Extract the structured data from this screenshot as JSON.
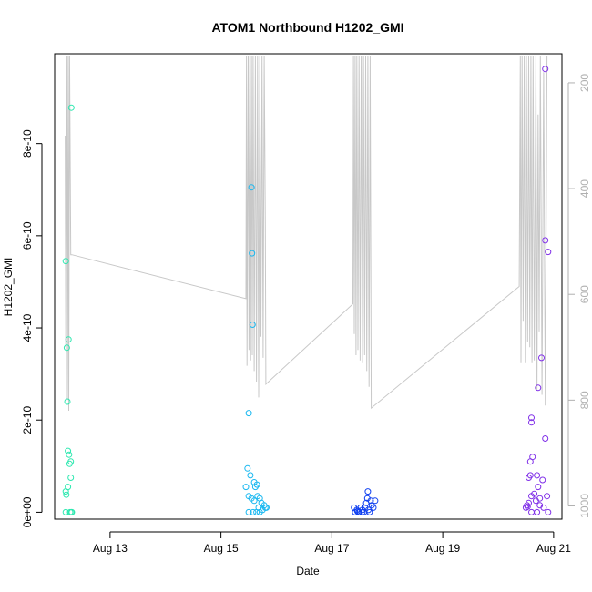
{
  "chart_data": {
    "type": "scatter",
    "title": "ATOM1 Northbound H1202_GMI",
    "xlabel": "Date",
    "ylabel": "H1202_GMI",
    "x_ticks": [
      {
        "label": "Aug 13",
        "day": 13
      },
      {
        "label": "Aug 15",
        "day": 15
      },
      {
        "label": "Aug 17",
        "day": 17
      },
      {
        "label": "Aug 19",
        "day": 19
      },
      {
        "label": "Aug 21",
        "day": 21
      }
    ],
    "y_ticks": [
      {
        "label": "0e+00",
        "value": 0
      },
      {
        "label": "2e-10",
        "value": 2e-10
      },
      {
        "label": "4e-10",
        "value": 4e-10
      },
      {
        "label": "6e-10",
        "value": 6e-10
      },
      {
        "label": "8e-10",
        "value": 8e-10
      }
    ],
    "y2_ticks": [
      {
        "label": "200",
        "value": 200
      },
      {
        "label": "400",
        "value": 400
      },
      {
        "label": "600",
        "value": 600
      },
      {
        "label": "800",
        "value": 800
      },
      {
        "label": "1000",
        "value": 1000
      }
    ],
    "xlim": [
      12.0,
      21.15
    ],
    "ylim": [
      -1.5e-11,
      9.95e-10
    ],
    "y2lim": [
      1025,
      145
    ],
    "y2_reversed": true,
    "grid": false,
    "legend": "none",
    "point_color_by_time": [
      "#2ee8b0",
      "#1ab8f0",
      "#1040f0",
      "#8030e8"
    ],
    "depth_line_color": "#c8c8c8",
    "series": [
      {
        "points": [
          [
            12.2,
            5.45e-10
          ],
          [
            12.3,
            8.78e-10
          ],
          [
            12.25,
            3.75e-10
          ],
          [
            12.22,
            3.57e-10
          ],
          [
            12.23,
            2.4e-10
          ],
          [
            12.24,
            1.33e-10
          ],
          [
            12.26,
            1.25e-10
          ],
          [
            12.29,
            1.1e-10
          ],
          [
            12.27,
            1.05e-10
          ],
          [
            12.29,
            7.5e-11
          ],
          [
            12.24,
            5.5e-11
          ],
          [
            12.2,
            4.5e-11
          ],
          [
            12.21,
            3.8e-11
          ],
          [
            12.2,
            0.0
          ],
          [
            12.28,
            0.0
          ],
          [
            12.3,
            0.0
          ],
          [
            12.31,
            0.0
          ]
        ]
      },
      {
        "points": [
          [
            15.55,
            7.05e-10
          ],
          [
            15.56,
            5.62e-10
          ],
          [
            15.57,
            4.07e-10
          ],
          [
            15.5,
            2.15e-10
          ],
          [
            15.48,
            9.5e-11
          ],
          [
            15.53,
            8e-11
          ],
          [
            15.6,
            6.5e-11
          ],
          [
            15.65,
            6e-11
          ],
          [
            15.45,
            5.5e-11
          ],
          [
            15.62,
            5.5e-11
          ],
          [
            15.5,
            3.5e-11
          ],
          [
            15.55,
            3e-11
          ],
          [
            15.66,
            3.5e-11
          ],
          [
            15.7,
            3e-11
          ],
          [
            15.6,
            2.5e-11
          ],
          [
            15.73,
            2e-11
          ],
          [
            15.78,
            1.5e-11
          ],
          [
            15.8,
            1e-11
          ],
          [
            15.68,
            1e-11
          ],
          [
            15.75,
            5e-12
          ],
          [
            15.82,
            1e-11
          ],
          [
            15.5,
            0.0
          ],
          [
            15.58,
            0.0
          ],
          [
            15.64,
            0.0
          ],
          [
            15.7,
            0.0
          ]
        ]
      },
      {
        "points": [
          [
            17.4,
            1e-11
          ],
          [
            17.45,
            5e-12
          ],
          [
            17.5,
            0.0
          ],
          [
            17.55,
            5e-12
          ],
          [
            17.6,
            1e-11
          ],
          [
            17.62,
            2e-11
          ],
          [
            17.65,
            4.5e-11
          ],
          [
            17.7,
            2.5e-11
          ],
          [
            17.72,
            1.5e-11
          ],
          [
            17.75,
            1e-11
          ],
          [
            17.42,
            0.0
          ],
          [
            17.48,
            0.0
          ],
          [
            17.52,
            1e-11
          ],
          [
            17.58,
            0.0
          ],
          [
            17.68,
            0.0
          ],
          [
            17.64,
            3e-11
          ],
          [
            17.78,
            2.5e-11
          ],
          [
            17.55,
            0.0
          ],
          [
            17.46,
            2e-12
          ],
          [
            17.66,
            5e-12
          ]
        ]
      },
      {
        "points": [
          [
            20.85,
            9.62e-10
          ],
          [
            20.85,
            5.9e-10
          ],
          [
            20.9,
            5.65e-10
          ],
          [
            20.78,
            3.35e-10
          ],
          [
            20.72,
            2.7e-10
          ],
          [
            20.6,
            2.05e-10
          ],
          [
            20.6,
            1.95e-10
          ],
          [
            20.85,
            1.6e-10
          ],
          [
            20.58,
            1.1e-10
          ],
          [
            20.62,
            1.2e-10
          ],
          [
            20.58,
            8e-11
          ],
          [
            20.7,
            8e-11
          ],
          [
            20.55,
            7.5e-11
          ],
          [
            20.8,
            7e-11
          ],
          [
            20.72,
            5.5e-11
          ],
          [
            20.65,
            4e-11
          ],
          [
            20.6,
            3.5e-11
          ],
          [
            20.88,
            3.5e-11
          ],
          [
            20.75,
            3e-11
          ],
          [
            20.68,
            2.5e-11
          ],
          [
            20.55,
            2e-11
          ],
          [
            20.52,
            1.5e-11
          ],
          [
            20.5,
            1e-11
          ],
          [
            20.53,
            1.2e-11
          ],
          [
            20.75,
            1.5e-11
          ],
          [
            20.82,
            1e-11
          ],
          [
            20.9,
            0.0
          ],
          [
            20.7,
            0.0
          ],
          [
            20.6,
            0.0
          ]
        ]
      }
    ],
    "depth_series": [
      [
        [
          12.19,
          300
        ],
        [
          12.2,
          700
        ],
        [
          12.22,
          150
        ],
        [
          12.23,
          800
        ],
        [
          12.245,
          150
        ],
        [
          12.255,
          820
        ],
        [
          12.27,
          150
        ],
        [
          12.29,
          525
        ],
        [
          12.31,
          525
        ],
        [
          15.45,
          608
        ],
        [
          15.46,
          150
        ],
        [
          15.47,
          735
        ],
        [
          15.49,
          150
        ],
        [
          15.505,
          705
        ],
        [
          15.52,
          150
        ],
        [
          15.535,
          725
        ],
        [
          15.55,
          150
        ],
        [
          15.565,
          715
        ],
        [
          15.58,
          150
        ],
        [
          15.6,
          745
        ],
        [
          15.62,
          150
        ],
        [
          15.64,
          765
        ],
        [
          15.66,
          150
        ],
        [
          15.68,
          795
        ],
        [
          15.7,
          150
        ],
        [
          15.72,
          680
        ],
        [
          15.74,
          150
        ],
        [
          15.76,
          720
        ],
        [
          15.78,
          150
        ],
        [
          15.8,
          470
        ],
        [
          15.81,
          770
        ],
        [
          17.38,
          618
        ],
        [
          17.39,
          150
        ],
        [
          17.405,
          675
        ],
        [
          17.42,
          150
        ],
        [
          17.435,
          715
        ],
        [
          17.45,
          150
        ],
        [
          17.47,
          705
        ],
        [
          17.49,
          150
        ],
        [
          17.51,
          725
        ],
        [
          17.53,
          150
        ],
        [
          17.55,
          730
        ],
        [
          17.57,
          150
        ],
        [
          17.59,
          715
        ],
        [
          17.61,
          150
        ],
        [
          17.63,
          745
        ],
        [
          17.65,
          150
        ],
        [
          17.67,
          775
        ],
        [
          17.69,
          150
        ],
        [
          17.71,
          815
        ],
        [
          20.38,
          585
        ],
        [
          20.4,
          150
        ],
        [
          20.41,
          730
        ],
        [
          20.43,
          150
        ],
        [
          20.45,
          650
        ],
        [
          20.47,
          150
        ],
        [
          20.49,
          730
        ],
        [
          20.51,
          150
        ],
        [
          20.53,
          690
        ],
        [
          20.55,
          150
        ],
        [
          20.57,
          700
        ],
        [
          20.59,
          150
        ],
        [
          20.61,
          730
        ],
        [
          20.63,
          150
        ],
        [
          20.65,
          725
        ],
        [
          20.68,
          150
        ],
        [
          20.7,
          780
        ],
        [
          20.72,
          260
        ],
        [
          20.74,
          670
        ],
        [
          20.76,
          150
        ],
        [
          20.79,
          790
        ],
        [
          20.82,
          180
        ],
        [
          20.85,
          810
        ],
        [
          20.88,
          150
        ]
      ]
    ]
  }
}
